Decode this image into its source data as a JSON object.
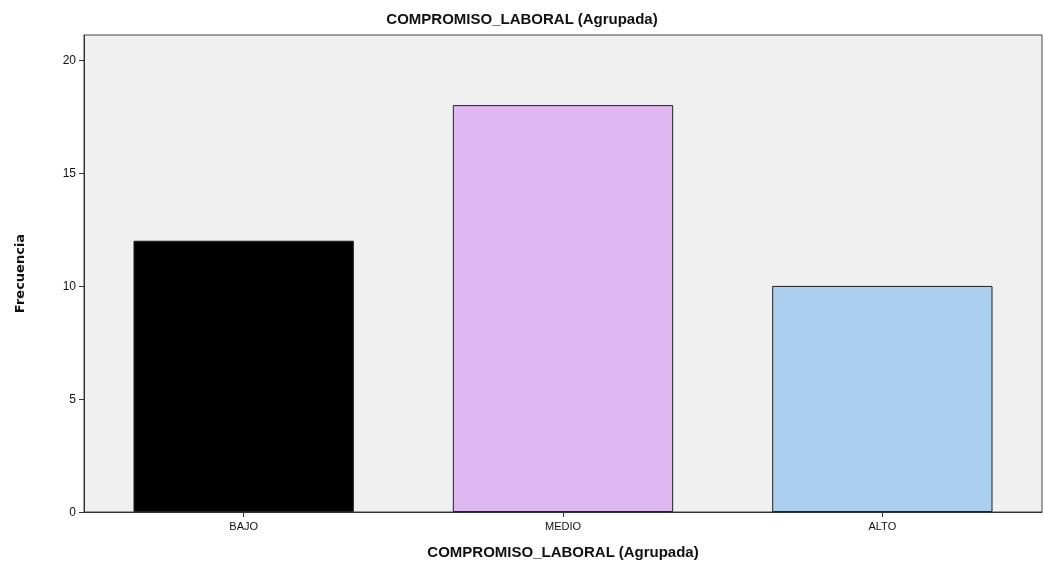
{
  "chart_data": {
    "type": "bar",
    "title": "COMPROMISO_LABORAL (Agrupada)",
    "xlabel": "COMPROMISO_LABORAL (Agrupada)",
    "ylabel": "Frecuencia",
    "categories": [
      "BAJO",
      "MEDIO",
      "ALTO"
    ],
    "values": [
      12,
      18,
      10
    ],
    "colors": [
      "#000000",
      "#dfb8f2",
      "#abcdee"
    ],
    "ylim": [
      0,
      21.1
    ],
    "yticks": [
      0,
      5,
      10,
      15,
      20
    ]
  }
}
